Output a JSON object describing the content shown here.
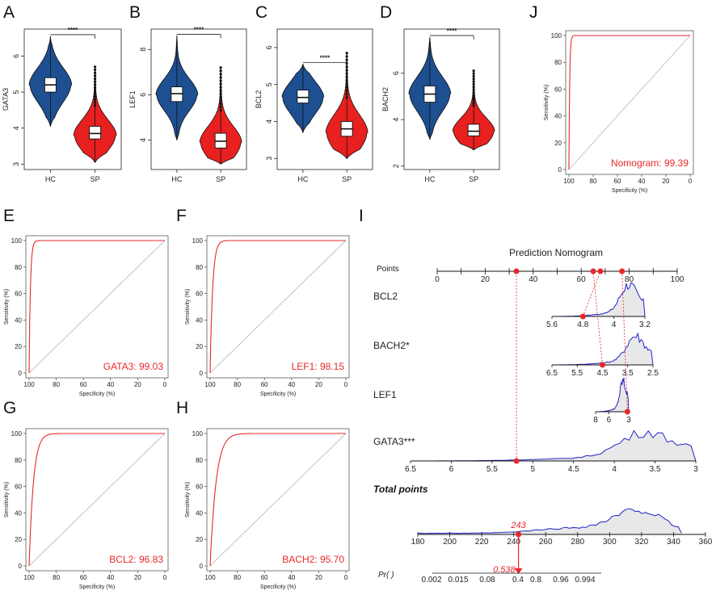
{
  "panel_letters": {
    "A": "A",
    "B": "B",
    "C": "C",
    "D": "D",
    "E": "E",
    "F": "F",
    "G": "G",
    "H": "H",
    "I": "I",
    "J": "J"
  },
  "colors": {
    "hc": "#1d4f91",
    "sp": "#e8201f",
    "roc": "#e8282b",
    "diag": "#bdbdbd",
    "density": "#2323c8",
    "density_fill": "#e8e8e8",
    "red": "#e8282b"
  },
  "chart_data": [
    {
      "id": "A",
      "type": "violin",
      "ylabel": "GATA3",
      "categories": [
        "HC",
        "SP"
      ],
      "yticks": [
        3,
        4,
        5,
        6
      ],
      "ylim": [
        2.85,
        6.75
      ],
      "groups": [
        {
          "name": "HC",
          "median": 5.2,
          "q1": 5.0,
          "q3": 5.4,
          "min": 4.05,
          "max": 6.55,
          "mode": 5.2
        },
        {
          "name": "SP",
          "median": 3.85,
          "q1": 3.7,
          "q3": 4.05,
          "min": 3.05,
          "max": 5.7,
          "mode": 3.8
        }
      ],
      "significance": "****"
    },
    {
      "id": "B",
      "type": "violin",
      "ylabel": "LEF1",
      "categories": [
        "HC",
        "SP"
      ],
      "yticks": [
        4,
        6,
        8
      ],
      "ylim": [
        2.7,
        8.9
      ],
      "groups": [
        {
          "name": "HC",
          "median": 6.05,
          "q1": 5.7,
          "q3": 6.35,
          "min": 4.0,
          "max": 8.6,
          "mode": 6.0
        },
        {
          "name": "SP",
          "median": 3.95,
          "q1": 3.65,
          "q3": 4.3,
          "min": 2.95,
          "max": 7.2,
          "mode": 3.9
        }
      ],
      "significance": "****"
    },
    {
      "id": "C",
      "type": "violin",
      "ylabel": "BCL2",
      "categories": [
        "HC",
        "SP"
      ],
      "yticks": [
        3,
        4,
        5,
        6
      ],
      "ylim": [
        2.7,
        6.5
      ],
      "groups": [
        {
          "name": "HC",
          "median": 4.65,
          "q1": 4.5,
          "q3": 4.85,
          "min": 3.7,
          "max": 5.55,
          "mode": 4.65
        },
        {
          "name": "SP",
          "median": 3.8,
          "q1": 3.6,
          "q3": 4.0,
          "min": 3.0,
          "max": 5.85,
          "mode": 3.7
        }
      ],
      "significance": "****"
    },
    {
      "id": "D",
      "type": "violin",
      "ylabel": "BACH2",
      "categories": [
        "HC",
        "SP"
      ],
      "yticks": [
        2,
        4,
        6
      ],
      "ylim": [
        1.85,
        7.9
      ],
      "groups": [
        {
          "name": "HC",
          "median": 5.1,
          "q1": 4.75,
          "q3": 5.45,
          "min": 3.15,
          "max": 7.55,
          "mode": 5.1
        },
        {
          "name": "SP",
          "median": 3.5,
          "q1": 3.3,
          "q3": 3.8,
          "min": 2.7,
          "max": 6.1,
          "mode": 3.5
        }
      ],
      "significance": "****"
    },
    {
      "id": "E",
      "type": "roc",
      "label": "GATA3: 99.03",
      "auc": 99.03,
      "xlabel": "Specificity (%)",
      "ylabel": "Sensitivity (%)",
      "xticks": [
        100,
        80,
        60,
        40,
        20,
        0
      ],
      "yticks": [
        0,
        20,
        40,
        60,
        80,
        100
      ]
    },
    {
      "id": "F",
      "type": "roc",
      "label": "LEF1: 98.15",
      "auc": 98.15,
      "xlabel": "Specificity (%)",
      "ylabel": "Sensitivity (%)",
      "xticks": [
        100,
        80,
        60,
        40,
        20,
        0
      ],
      "yticks": [
        0,
        20,
        40,
        60,
        80,
        100
      ]
    },
    {
      "id": "G",
      "type": "roc",
      "label": "BCL2: 96.83",
      "auc": 96.83,
      "xlabel": "Specificity (%)",
      "ylabel": "Sensitivity (%)",
      "xticks": [
        100,
        80,
        60,
        40,
        20,
        0
      ],
      "yticks": [
        0,
        20,
        40,
        60,
        80,
        100
      ]
    },
    {
      "id": "H",
      "type": "roc",
      "label": "BACH2: 95.70",
      "auc": 95.7,
      "xlabel": "Specificity (%)",
      "ylabel": "Sensitivity (%)",
      "xticks": [
        100,
        80,
        60,
        40,
        20,
        0
      ],
      "yticks": [
        0,
        20,
        40,
        60,
        80,
        100
      ]
    },
    {
      "id": "J",
      "type": "roc",
      "label": "Nomogram: 99.39",
      "auc": 99.39,
      "xlabel": "Specificity (%)",
      "ylabel": "Sensitivity (%)",
      "xticks": [
        100,
        80,
        60,
        40,
        20,
        0
      ],
      "yticks": [
        0,
        20,
        40,
        60,
        80,
        100
      ]
    },
    {
      "id": "I",
      "type": "nomogram",
      "title": "Prediction Nomogram",
      "points_label": "Points",
      "points_ticks": [
        0,
        20,
        40,
        60,
        80,
        100
      ],
      "variables": [
        {
          "name": "BCL2",
          "ticks": [
            "5.6",
            "4.8",
            "4",
            "3.2"
          ],
          "range": [
            5.6,
            3.2
          ],
          "selected": 4.8
        },
        {
          "name": "BACH2*",
          "ticks": [
            "6.5",
            "5.5",
            "4.5",
            "3.5",
            "2.5"
          ],
          "range": [
            6.5,
            2.5
          ],
          "selected": 4.5
        },
        {
          "name": "LEF1",
          "ticks": [
            "8",
            "6",
            "3"
          ],
          "tick_values": [
            8,
            6,
            3
          ],
          "range": [
            8,
            3
          ],
          "selected": 3.2
        },
        {
          "name": "GATA3***",
          "ticks": [
            "6.5",
            "6",
            "5.5",
            "5",
            "4.5",
            "4",
            "3.5",
            "3"
          ],
          "range": [
            6.5,
            3
          ],
          "selected": 5.2
        }
      ],
      "selected_points": [
        33,
        65,
        68,
        77
      ],
      "total_label": "Total points",
      "total_ticks": [
        180,
        200,
        220,
        240,
        260,
        280,
        300,
        320,
        340,
        360
      ],
      "total_value": "243",
      "pr_label": "Pr( )",
      "pr_ticks": [
        "0.002",
        "0.015",
        "0.08",
        "0.4",
        "0.8",
        "0.96",
        "0.994"
      ],
      "pr_value": "0.538"
    }
  ]
}
